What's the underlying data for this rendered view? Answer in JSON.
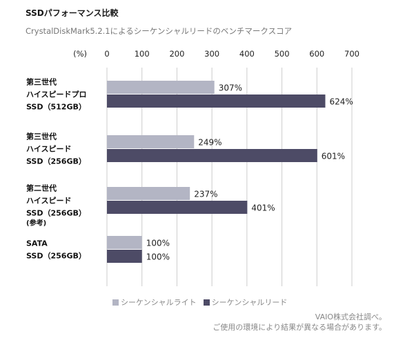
{
  "header": {
    "title": "SSDパフォーマンス比較",
    "subtitle": "CrystalDiskMark5.2.1によるシーケンシャルリードのベンチマークスコア"
  },
  "colors": {
    "write": "#b3b5c4",
    "read": "#4d4b66",
    "grid": "#cccccc"
  },
  "chart_data": {
    "type": "bar",
    "orientation": "horizontal",
    "unit_label": "(%)",
    "xlim": [
      0,
      700
    ],
    "ticks": [
      0,
      100,
      200,
      300,
      400,
      500,
      600,
      700
    ],
    "categories": [
      {
        "lines": [
          "第三世代",
          "ハイスピードプロ",
          "SSD（512GB）"
        ],
        "note": ""
      },
      {
        "lines": [
          "第三世代",
          "ハイスピード",
          "SSD（256GB）"
        ],
        "note": ""
      },
      {
        "lines": [
          "第二世代",
          "ハイスピード",
          "SSD（256GB）"
        ],
        "note": "(参考)"
      },
      {
        "lines": [
          "SATA",
          "SSD（256GB）"
        ],
        "note": ""
      }
    ],
    "series": [
      {
        "name": "シーケンシャルライト",
        "values": [
          307,
          249,
          237,
          100
        ],
        "labels": [
          "307%",
          "249%",
          "237%",
          "100%"
        ]
      },
      {
        "name": "シーケンシャルリード",
        "values": [
          624,
          601,
          401,
          100
        ],
        "labels": [
          "624%",
          "601%",
          "401%",
          "100%"
        ]
      }
    ],
    "grid": true,
    "legend_position": "bottom-left"
  },
  "footer": {
    "source": "VAIO株式会社調べ。",
    "note": "ご使用の環境により結果が異なる場合があります。"
  }
}
